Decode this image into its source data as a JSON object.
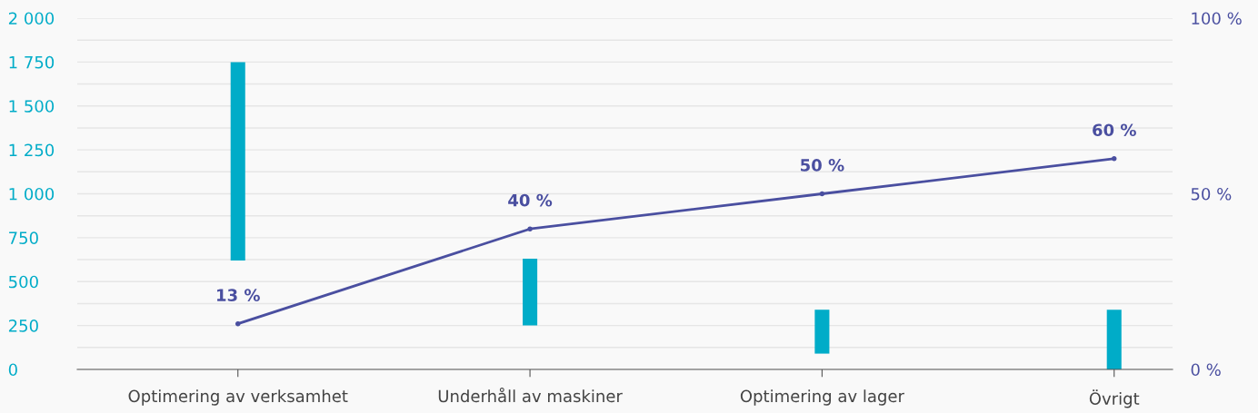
{
  "chart_data": {
    "type": "bar",
    "categories": [
      "Optimering av verksamhet",
      "Underhåll av maskiner",
      "Optimering av lager",
      "Övrigt"
    ],
    "series": [
      {
        "color": "#00acc8",
        "base": [
          620,
          250,
          90,
          0
        ],
        "values": [
          1130,
          380,
          250,
          340
        ]
      },
      {
        "type": "line",
        "axis": "y2",
        "color": "#4a4fa0",
        "marker": "circle",
        "values": [
          13,
          40,
          50,
          60
        ],
        "value_labels": [
          "13 %",
          "40 %",
          "50 %",
          "60 %"
        ]
      }
    ],
    "ylim": [
      0,
      2000
    ],
    "yticks": [
      {
        "value": 0,
        "label": "0"
      },
      {
        "value": 125,
        "label": null
      },
      {
        "value": 250,
        "label": "250"
      },
      {
        "value": 375,
        "label": null
      },
      {
        "value": 500,
        "label": "500"
      },
      {
        "value": 625,
        "label": null
      },
      {
        "value": 750,
        "label": "750"
      },
      {
        "value": 875,
        "label": null
      },
      {
        "value": 1000,
        "label": "1 000"
      },
      {
        "value": 1125,
        "label": null
      },
      {
        "value": 1250,
        "label": "1 250"
      },
      {
        "value": 1375,
        "label": null
      },
      {
        "value": 1500,
        "label": "1 500"
      },
      {
        "value": 1625,
        "label": null
      },
      {
        "value": 1750,
        "label": "1 750"
      },
      {
        "value": 1875,
        "label": null
      },
      {
        "value": 2000,
        "label": "2 000"
      }
    ],
    "y2lim": [
      0,
      100
    ],
    "y2ticks": [
      {
        "value": 0,
        "label": "0 %"
      },
      {
        "value": 50,
        "label": "50 %"
      },
      {
        "value": 100,
        "label": "100 %"
      }
    ],
    "grid": "y"
  }
}
